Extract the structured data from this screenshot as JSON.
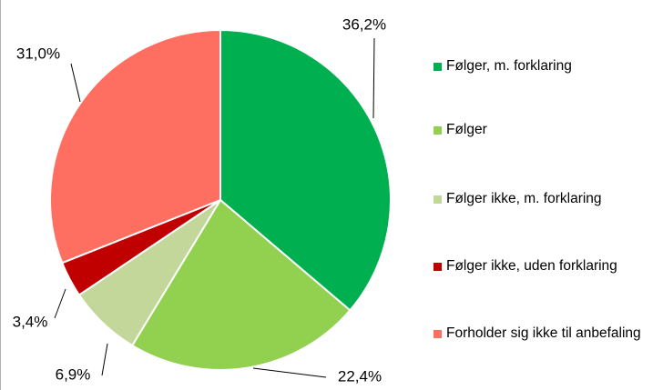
{
  "chart_data": {
    "type": "pie",
    "categories": [
      "Følger, m. forklaring",
      "Følger",
      "Følger ikke, m. forklaring",
      "Følger ikke, uden forklaring",
      "Forholder sig ikke til anbefaling"
    ],
    "values": [
      36.2,
      22.4,
      6.9,
      3.4,
      31.0
    ],
    "value_labels": [
      "36,2%",
      "22,4%",
      "6,9%",
      "3,4%",
      "31,0%"
    ],
    "colors": [
      "#00b050",
      "#92d050",
      "#c4d79b",
      "#c00000",
      "#ff6f61"
    ],
    "legend": "right"
  }
}
